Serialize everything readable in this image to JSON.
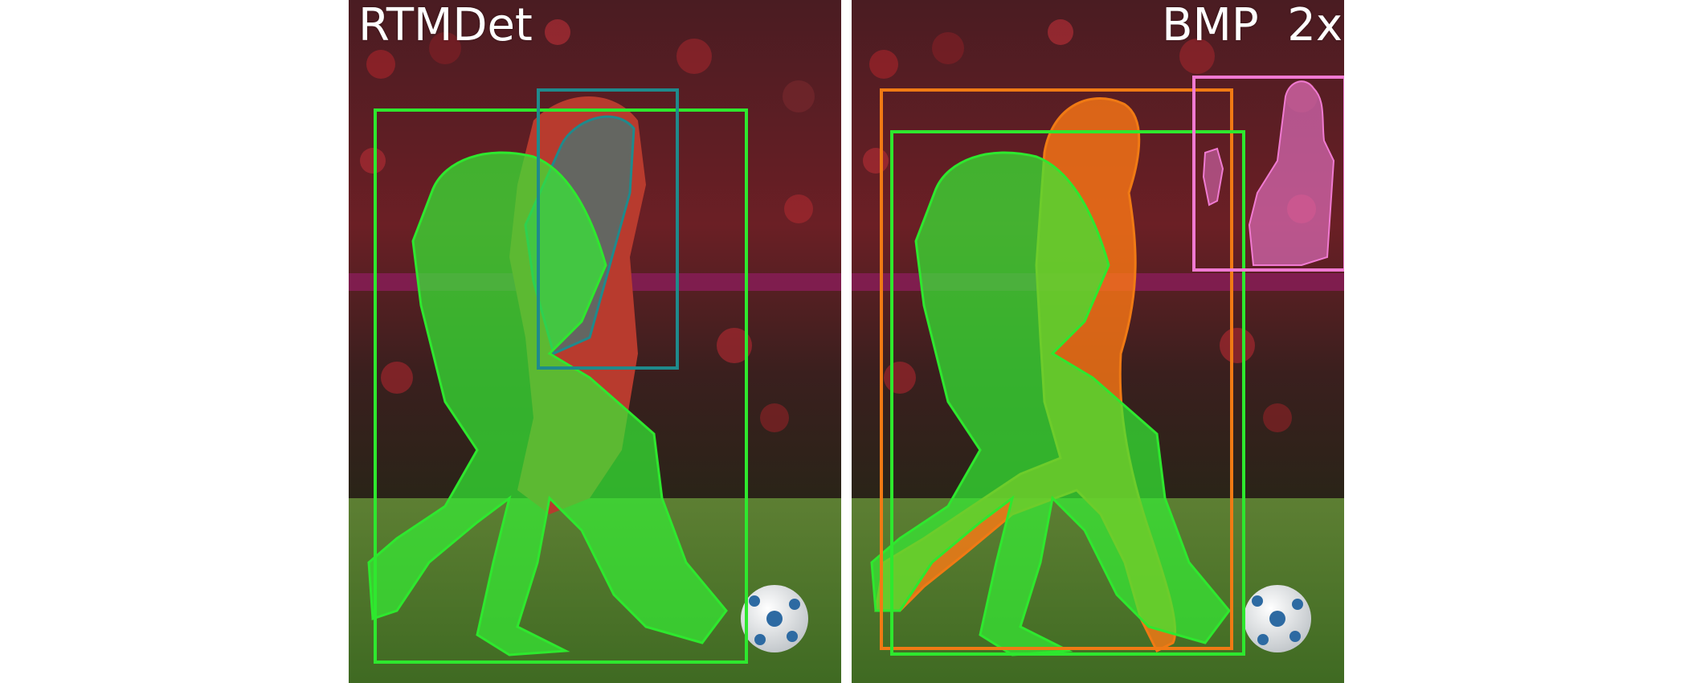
{
  "panels": [
    {
      "label": "RTMDet",
      "detections": [
        {
          "category": "person",
          "color": "#2ee82e"
        },
        {
          "category": "person",
          "color": "#1f8a8c"
        }
      ]
    },
    {
      "label": "BMP  2x",
      "detections": [
        {
          "category": "person",
          "color": "#2ee82e"
        },
        {
          "category": "person",
          "color": "#f07a14"
        },
        {
          "category": "person",
          "color": "#f07ad2"
        }
      ]
    }
  ],
  "colors": {
    "grass": "#4f7a2a",
    "crowd": "#5a1e22",
    "ball": "#f2f2f2"
  }
}
